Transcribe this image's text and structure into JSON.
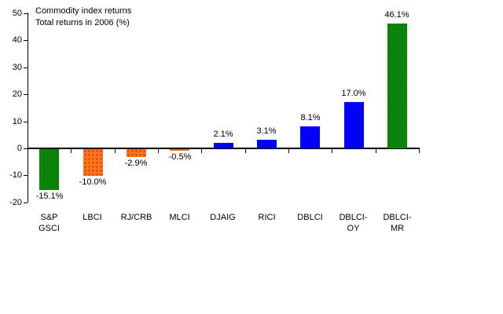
{
  "chart_data": {
    "type": "bar",
    "title": "Commodity index returns",
    "subtitle": "Total returns in 2006 (%)",
    "categories": [
      "S&P\nGSCI",
      "LBCI",
      "RJ/CRB",
      "MLCI",
      "DJAIG",
      "RICI",
      "DBLCI",
      "DBLCI-\nOY",
      "DBLCI-\nMR"
    ],
    "values": [
      -15.1,
      -10.0,
      -2.9,
      -0.5,
      2.1,
      3.1,
      8.1,
      17.0,
      46.1
    ],
    "value_labels": [
      "-15.1%",
      "-10.0%",
      "-2.9%",
      "-0.5%",
      "2.1%",
      "3.1%",
      "8.1%",
      "17.0%",
      "46.1%"
    ],
    "bar_styles": [
      "green",
      "orange",
      "orange",
      "orange",
      "blue",
      "blue",
      "blue",
      "blue",
      "green"
    ],
    "ylim": [
      -20,
      50
    ],
    "yticks": [
      50,
      40,
      30,
      20,
      10,
      0,
      -10,
      -20
    ],
    "grid": false,
    "legend": "none",
    "colors": {
      "blue": "#0000FF",
      "green_light": "#00A800",
      "green_dark": "#006000",
      "orange": "#FF7519",
      "orange_dark": "#D23C14",
      "axis": "#000000",
      "background": "#FFFFFF",
      "text": "#000000"
    }
  }
}
